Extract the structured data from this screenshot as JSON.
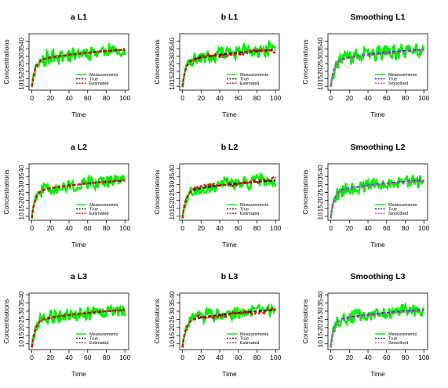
{
  "chart_data": [
    {
      "id": "aL1",
      "type": "line",
      "title": "a L1",
      "xlabel": "Time",
      "ylabel": "Concentrations",
      "xlim": [
        -3,
        104
      ],
      "ylim": [
        7.5,
        45
      ],
      "xticks": [
        0,
        20,
        40,
        60,
        80,
        100
      ],
      "yticks": [
        10,
        15,
        20,
        25,
        30,
        35,
        40
      ],
      "legend": {
        "position": "bottom-right",
        "entries": [
          {
            "label": "Measurements",
            "color": "#00ee00",
            "style": "solid"
          },
          {
            "label": "True",
            "color": "#111111",
            "style": "dashed"
          },
          {
            "label": "Estimated",
            "color": "#ee0000",
            "style": "dashed"
          }
        ]
      },
      "curve": {
        "start": 10,
        "k": 0.29,
        "plateau": 37.5,
        "rate": 0.012
      },
      "series": [
        {
          "name": "Measurements",
          "color": "#00ee00",
          "seed": 11,
          "noise": 4.5
        },
        {
          "name": "True",
          "color": "#111111",
          "dash": true,
          "scale": 1.0,
          "wobble": 0
        },
        {
          "name": "Estimated",
          "color": "#ee0000",
          "dash": true,
          "scale": 1.0,
          "wobble": 0.3
        }
      ]
    },
    {
      "id": "bL1",
      "type": "line",
      "title": "b L1",
      "xlabel": "Time",
      "ylabel": "Concentrations",
      "xlim": [
        -3,
        104
      ],
      "ylim": [
        7.5,
        45
      ],
      "xticks": [
        0,
        20,
        40,
        60,
        80,
        100
      ],
      "yticks": [
        10,
        15,
        20,
        25,
        30,
        35,
        40
      ],
      "legend": {
        "position": "bottom-right",
        "entries": [
          {
            "label": "Measurements",
            "color": "#00ee00",
            "style": "solid"
          },
          {
            "label": "True",
            "color": "#111111",
            "style": "dashed"
          },
          {
            "label": "Estimated",
            "color": "#ee0000",
            "style": "dashed"
          }
        ]
      },
      "curve": {
        "start": 10,
        "k": 0.29,
        "plateau": 37.5,
        "rate": 0.012
      },
      "series": [
        {
          "name": "Measurements",
          "color": "#00ee00",
          "seed": 23,
          "noise": 4.5
        },
        {
          "name": "True",
          "color": "#111111",
          "dash": true,
          "scale": 1.0,
          "wobble": 0
        },
        {
          "name": "Estimated",
          "color": "#ee0000",
          "dash": true,
          "scale": 1.0,
          "wobble": 2.0
        }
      ]
    },
    {
      "id": "sL1",
      "type": "line",
      "title": "Smoothing L1",
      "xlabel": "Time",
      "ylabel": "Concentrations",
      "xlim": [
        -3,
        104
      ],
      "ylim": [
        7.5,
        45
      ],
      "xticks": [
        0,
        20,
        40,
        60,
        80,
        100
      ],
      "yticks": [
        10,
        15,
        20,
        25,
        30,
        35,
        40
      ],
      "legend": {
        "position": "bottom-right",
        "entries": [
          {
            "label": "Measurements",
            "color": "#00ee00",
            "style": "solid"
          },
          {
            "label": "True",
            "color": "#0000ee",
            "style": "dashed"
          },
          {
            "label": "Smoothed",
            "color": "#cc44cc",
            "style": "dashed"
          }
        ]
      },
      "curve": {
        "start": 10,
        "k": 0.29,
        "plateau": 37.5,
        "rate": 0.012
      },
      "series": [
        {
          "name": "Measurements",
          "color": "#00ee00",
          "seed": 37,
          "noise": 4.5
        },
        {
          "name": "True",
          "color": "#0000ee",
          "dash": true,
          "scale": 1.0,
          "wobble": 0
        },
        {
          "name": "Smoothed",
          "color": "#cc44cc",
          "dash": true,
          "scale": 0.99,
          "wobble": 0.2
        }
      ]
    },
    {
      "id": "aL2",
      "type": "line",
      "title": "a L2",
      "xlabel": "Time",
      "ylabel": "Concentrations",
      "xlim": [
        -3,
        104
      ],
      "ylim": [
        7.5,
        43
      ],
      "xticks": [
        0,
        20,
        40,
        60,
        80,
        100
      ],
      "yticks": [
        10,
        15,
        20,
        25,
        30,
        35,
        40
      ],
      "legend": {
        "position": "bottom-right",
        "entries": [
          {
            "label": "Measurements",
            "color": "#00ee00",
            "style": "solid"
          },
          {
            "label": "True",
            "color": "#111111",
            "style": "dashed"
          },
          {
            "label": "Estimated",
            "color": "#ee0000",
            "style": "dashed"
          }
        ]
      },
      "curve": {
        "start": 9,
        "k": 0.29,
        "plateau": 35.5,
        "rate": 0.012
      },
      "series": [
        {
          "name": "Measurements",
          "color": "#00ee00",
          "seed": 51,
          "noise": 4.0
        },
        {
          "name": "True",
          "color": "#111111",
          "dash": true,
          "scale": 1.0,
          "wobble": 0
        },
        {
          "name": "Estimated",
          "color": "#ee0000",
          "dash": true,
          "scale": 1.0,
          "wobble": 0.3
        }
      ]
    },
    {
      "id": "bL2",
      "type": "line",
      "title": "b L2",
      "xlabel": "Time",
      "ylabel": "Concentrations",
      "xlim": [
        -3,
        104
      ],
      "ylim": [
        7.5,
        43
      ],
      "xticks": [
        0,
        20,
        40,
        60,
        80,
        100
      ],
      "yticks": [
        10,
        15,
        20,
        25,
        30,
        35,
        40
      ],
      "legend": {
        "position": "bottom-right",
        "entries": [
          {
            "label": "Measurements",
            "color": "#00ee00",
            "style": "solid"
          },
          {
            "label": "True",
            "color": "#111111",
            "style": "dashed"
          },
          {
            "label": "Estimated",
            "color": "#ee0000",
            "style": "dashed"
          }
        ]
      },
      "curve": {
        "start": 9,
        "k": 0.29,
        "plateau": 35.5,
        "rate": 0.012
      },
      "series": [
        {
          "name": "Measurements",
          "color": "#00ee00",
          "seed": 67,
          "noise": 4.0
        },
        {
          "name": "True",
          "color": "#111111",
          "dash": true,
          "scale": 1.0,
          "wobble": 0
        },
        {
          "name": "Estimated",
          "color": "#ee0000",
          "dash": true,
          "scale": 1.0,
          "wobble": 1.8
        }
      ]
    },
    {
      "id": "sL2",
      "type": "line",
      "title": "Smoothing L2",
      "xlabel": "Time",
      "ylabel": "Concentrations",
      "xlim": [
        -3,
        104
      ],
      "ylim": [
        7.5,
        43
      ],
      "xticks": [
        0,
        20,
        40,
        60,
        80,
        100
      ],
      "yticks": [
        10,
        15,
        20,
        25,
        30,
        35,
        40
      ],
      "legend": {
        "position": "bottom-right",
        "entries": [
          {
            "label": "Measurements",
            "color": "#00ee00",
            "style": "solid"
          },
          {
            "label": "True",
            "color": "#0000ee",
            "style": "dashed"
          },
          {
            "label": "Smoothed",
            "color": "#cc44cc",
            "style": "dashed"
          }
        ]
      },
      "curve": {
        "start": 9,
        "k": 0.29,
        "plateau": 35.5,
        "rate": 0.012
      },
      "series": [
        {
          "name": "Measurements",
          "color": "#00ee00",
          "seed": 79,
          "noise": 4.0
        },
        {
          "name": "True",
          "color": "#0000ee",
          "dash": true,
          "scale": 1.0,
          "wobble": 0
        },
        {
          "name": "Smoothed",
          "color": "#cc44cc",
          "dash": true,
          "scale": 0.99,
          "wobble": 0.2
        }
      ]
    },
    {
      "id": "aL3",
      "type": "line",
      "title": "a L3",
      "xlabel": "Time",
      "ylabel": "Concentrations",
      "xlim": [
        -3,
        104
      ],
      "ylim": [
        6.5,
        41
      ],
      "xticks": [
        0,
        20,
        40,
        60,
        80,
        100
      ],
      "yticks": [
        10,
        15,
        20,
        25,
        30,
        35,
        40
      ],
      "legend": {
        "position": "bottom-right",
        "entries": [
          {
            "label": "Measurements",
            "color": "#00ee00",
            "style": "solid"
          },
          {
            "label": "True",
            "color": "#111111",
            "style": "dashed"
          },
          {
            "label": "Estimated",
            "color": "#ee0000",
            "style": "dashed"
          }
        ]
      },
      "curve": {
        "start": 8,
        "k": 0.29,
        "plateau": 33.5,
        "rate": 0.012
      },
      "series": [
        {
          "name": "Measurements",
          "color": "#00ee00",
          "seed": 91,
          "noise": 3.8
        },
        {
          "name": "True",
          "color": "#111111",
          "dash": true,
          "scale": 1.0,
          "wobble": 0
        },
        {
          "name": "Estimated",
          "color": "#ee0000",
          "dash": true,
          "scale": 1.0,
          "wobble": 0.3
        }
      ]
    },
    {
      "id": "bL3",
      "type": "line",
      "title": "b L3",
      "xlabel": "Time",
      "ylabel": "Concentrations",
      "xlim": [
        -3,
        104
      ],
      "ylim": [
        6.5,
        41
      ],
      "xticks": [
        0,
        20,
        40,
        60,
        80,
        100
      ],
      "yticks": [
        10,
        15,
        20,
        25,
        30,
        35,
        40
      ],
      "legend": {
        "position": "bottom-right",
        "entries": [
          {
            "label": "Measurements",
            "color": "#00ee00",
            "style": "solid"
          },
          {
            "label": "True",
            "color": "#111111",
            "style": "dashed"
          },
          {
            "label": "Estimated",
            "color": "#ee0000",
            "style": "dashed"
          }
        ]
      },
      "curve": {
        "start": 8,
        "k": 0.29,
        "plateau": 33.5,
        "rate": 0.012
      },
      "series": [
        {
          "name": "Measurements",
          "color": "#00ee00",
          "seed": 103,
          "noise": 3.8
        },
        {
          "name": "True",
          "color": "#111111",
          "dash": true,
          "scale": 1.0,
          "wobble": 0
        },
        {
          "name": "Estimated",
          "color": "#ee0000",
          "dash": true,
          "scale": 1.0,
          "wobble": 1.8
        }
      ]
    },
    {
      "id": "sL3",
      "type": "line",
      "title": "Smoothing L3",
      "xlabel": "Time",
      "ylabel": "Concentrations",
      "xlim": [
        -3,
        104
      ],
      "ylim": [
        6.5,
        41
      ],
      "xticks": [
        0,
        20,
        40,
        60,
        80,
        100
      ],
      "yticks": [
        10,
        15,
        20,
        25,
        30,
        35,
        40
      ],
      "legend": {
        "position": "bottom-right",
        "entries": [
          {
            "label": "Measurements",
            "color": "#00ee00",
            "style": "solid"
          },
          {
            "label": "True",
            "color": "#0000ee",
            "style": "dashed"
          },
          {
            "label": "Smoothed",
            "color": "#cc44cc",
            "style": "dashed"
          }
        ]
      },
      "curve": {
        "start": 8,
        "k": 0.29,
        "plateau": 33.5,
        "rate": 0.012
      },
      "series": [
        {
          "name": "Measurements",
          "color": "#00ee00",
          "seed": 117,
          "noise": 3.8
        },
        {
          "name": "True",
          "color": "#0000ee",
          "dash": true,
          "scale": 1.0,
          "wobble": 0
        },
        {
          "name": "Smoothed",
          "color": "#cc44cc",
          "dash": true,
          "scale": 0.99,
          "wobble": 0.2
        }
      ]
    }
  ]
}
